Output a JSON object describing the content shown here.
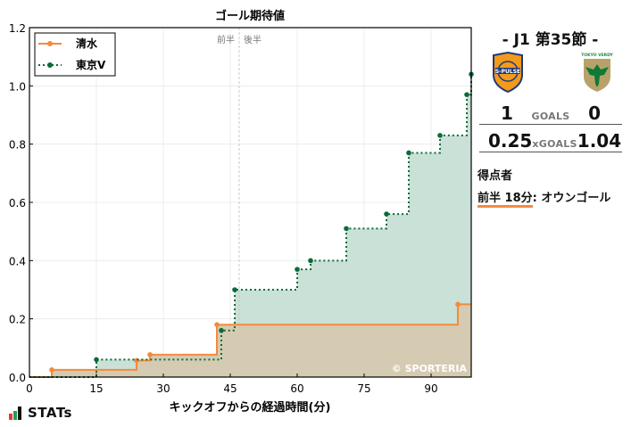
{
  "chart_data": {
    "type": "line",
    "subtype": "step",
    "title": "ゴール期待値",
    "xlabel": "キックオフからの経過時間(分)",
    "ylabel": "",
    "xlim": [
      0,
      99
    ],
    "ylim": [
      0,
      1.2
    ],
    "xticks": [
      0,
      15,
      30,
      45,
      60,
      75,
      90
    ],
    "yticks": [
      0.0,
      0.2,
      0.4,
      0.6,
      0.8,
      1.0,
      1.2
    ],
    "ytick_labels": [
      "0.0",
      "0.2",
      "0.4",
      "0.6",
      "0.8",
      "1.0",
      "1.2"
    ],
    "grid": true,
    "legend_position": "upper left",
    "halftime_line": {
      "x": 47,
      "labels": [
        "前半",
        "後半"
      ]
    },
    "watermark": "© SPORTERIA",
    "series": [
      {
        "name": "清水",
        "color": "#f58a3d",
        "fill": "#f6d8c2",
        "linestyle": "solid",
        "x": [
          0,
          5,
          24,
          27,
          42,
          96,
          99
        ],
        "y": [
          0,
          0.025,
          0.057,
          0.077,
          0.18,
          0.25,
          0.25
        ]
      },
      {
        "name": "東京V",
        "color": "#0b6b3a",
        "fill": "#c9e1d6",
        "linestyle": "dotted",
        "x": [
          0,
          15,
          43,
          46,
          60,
          63,
          71,
          80,
          85,
          92,
          98,
          99
        ],
        "y": [
          0,
          0.06,
          0.16,
          0.3,
          0.37,
          0.4,
          0.51,
          0.56,
          0.77,
          0.83,
          0.97,
          1.04
        ]
      }
    ]
  },
  "match": {
    "title": "-  J1 第35節  -",
    "home_team": "清水",
    "away_team": "東京V",
    "home_logo_icon": "s-pulse-crest-icon",
    "away_logo_icon": "tokyo-verdy-crest-icon",
    "home_logo_text": "S-PULSE",
    "away_logo_text": "TOKYO VERDY",
    "goals_label": "GOALS",
    "home_goals": "1",
    "away_goals": "0",
    "xgoals_label": "xGOALS",
    "home_xg": "0.25",
    "away_xg": "1.04",
    "scorers_title": "得点者",
    "scorers": [
      {
        "time": "前半 18分",
        "text": ": オウンゴール",
        "team_color": "#f58a3d"
      }
    ]
  },
  "branding": {
    "stats_logo_text": "STATs",
    "stats_bar_colors": [
      "#e03a2f",
      "#1e9e55",
      "#111111"
    ]
  }
}
